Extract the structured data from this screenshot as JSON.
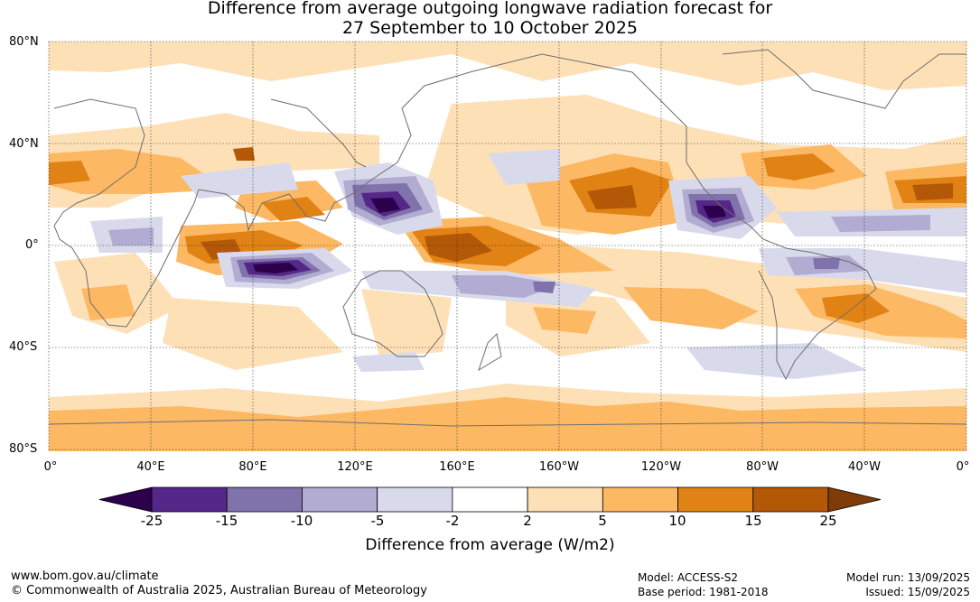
{
  "title_line1": "Difference from average outgoing longwave radiation forecast for",
  "title_line2": "27 September to 10 October 2025",
  "lat_labels": [
    "80°N",
    "40°N",
    "0°",
    "40°S",
    "80°S"
  ],
  "lon_labels": [
    "0°",
    "40°E",
    "80°E",
    "120°E",
    "160°E",
    "160°W",
    "120°W",
    "80°W",
    "40°W",
    "0°"
  ],
  "colorbar": {
    "ticks": [
      "-25",
      "-15",
      "-10",
      "-5",
      "-2",
      "2",
      "5",
      "10",
      "15",
      "25"
    ],
    "colors": [
      "#2d004b",
      "#542788",
      "#8073ac",
      "#b2abd2",
      "#d8daeb",
      "#ffffff",
      "#fee0b6",
      "#fdb863",
      "#e08214",
      "#b35806",
      "#7f3b08"
    ],
    "title": "Difference from average (W/m2)"
  },
  "footer": {
    "url": "www.bom.gov.au/climate",
    "copyright": "© Commonwealth of Australia 2025, Australian Bureau of Meteorology",
    "model": "Model: ACCESS-S2",
    "base_period": "Base period: 1981-2018",
    "model_run": "Model run: 13/09/2025",
    "issued": "Issued: 15/09/2025"
  }
}
